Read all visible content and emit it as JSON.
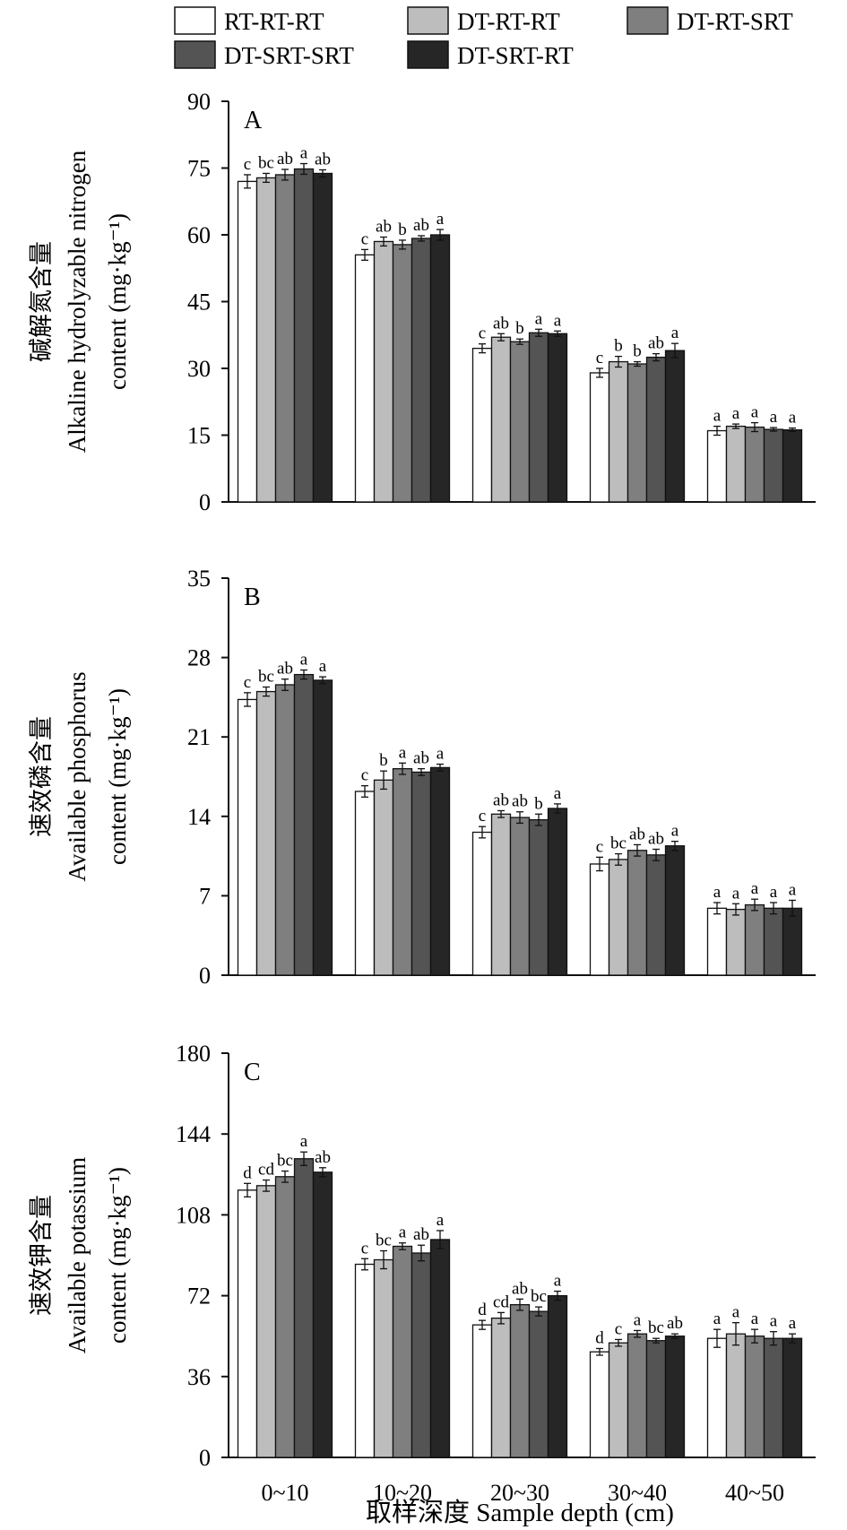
{
  "legend": [
    {
      "name": "RT-RT-RT",
      "color": "#ffffff"
    },
    {
      "name": "DT-RT-RT",
      "color": "#bdbdbd"
    },
    {
      "name": "DT-RT-SRT",
      "color": "#7f7f7f"
    },
    {
      "name": "DT-SRT-SRT",
      "color": "#545454"
    },
    {
      "name": "DT-SRT-RT",
      "color": "#262626"
    }
  ],
  "xlabel": "取样深度 Sample depth (cm)",
  "chart_data": [
    {
      "type": "bar",
      "panel": "A",
      "ylabel_cn": "碱解氮含量",
      "ylabel_en1": "Alkaline hydrolyzable nitrogen",
      "ylabel_en2": "content (mg·kg⁻¹)",
      "ylim": [
        0,
        90
      ],
      "yticks": [
        0,
        15,
        30,
        45,
        60,
        75,
        90
      ],
      "categories": [
        "0~10",
        "10~20",
        "20~30",
        "30~40",
        "40~50"
      ],
      "series": [
        {
          "name": "RT-RT-RT",
          "values": [
            72.0,
            55.5,
            34.5,
            29.0,
            16.0
          ],
          "errors": [
            1.5,
            1.2,
            1.0,
            1.0,
            1.0
          ],
          "letters": [
            "c",
            "c",
            "c",
            "c",
            "a"
          ]
        },
        {
          "name": "DT-RT-RT",
          "values": [
            72.8,
            58.5,
            37.0,
            31.5,
            17.0
          ],
          "errors": [
            1.0,
            1.0,
            0.8,
            1.2,
            0.5
          ],
          "letters": [
            "bc",
            "ab",
            "ab",
            "b",
            "a"
          ]
        },
        {
          "name": "DT-RT-SRT",
          "values": [
            73.5,
            57.8,
            36.0,
            31.0,
            16.8
          ],
          "errors": [
            1.2,
            1.0,
            0.6,
            0.5,
            1.0
          ],
          "letters": [
            "ab",
            "b",
            "b",
            "b",
            "a"
          ]
        },
        {
          "name": "DT-SRT-SRT",
          "values": [
            74.8,
            59.2,
            38.0,
            32.5,
            16.3
          ],
          "errors": [
            1.2,
            0.6,
            0.8,
            0.8,
            0.4
          ],
          "letters": [
            "a",
            "ab",
            "a",
            "ab",
            "a"
          ]
        },
        {
          "name": "DT-SRT-RT",
          "values": [
            73.8,
            60.0,
            37.8,
            34.0,
            16.2
          ],
          "errors": [
            0.8,
            1.2,
            0.6,
            1.6,
            0.4
          ],
          "letters": [
            "ab",
            "a",
            "a",
            "a",
            "a"
          ]
        }
      ]
    },
    {
      "type": "bar",
      "panel": "B",
      "ylabel_cn": "速效磷含量",
      "ylabel_en1": "Available phosphorus",
      "ylabel_en2": "content (mg·kg⁻¹)",
      "ylim": [
        0,
        35
      ],
      "yticks": [
        0,
        7,
        14,
        21,
        28,
        35
      ],
      "categories": [
        "0~10",
        "10~20",
        "20~30",
        "30~40",
        "40~50"
      ],
      "series": [
        {
          "name": "RT-RT-RT",
          "values": [
            24.3,
            16.2,
            12.6,
            9.8,
            5.9
          ],
          "errors": [
            0.6,
            0.5,
            0.5,
            0.6,
            0.5
          ],
          "letters": [
            "c",
            "c",
            "c",
            "c",
            "a"
          ]
        },
        {
          "name": "DT-RT-RT",
          "values": [
            25.0,
            17.2,
            14.2,
            10.2,
            5.8
          ],
          "errors": [
            0.4,
            0.8,
            0.3,
            0.5,
            0.5
          ],
          "letters": [
            "bc",
            "b",
            "ab",
            "bc",
            "a"
          ]
        },
        {
          "name": "DT-RT-SRT",
          "values": [
            25.6,
            18.2,
            13.9,
            11.0,
            6.2
          ],
          "errors": [
            0.5,
            0.5,
            0.5,
            0.5,
            0.5
          ],
          "letters": [
            "ab",
            "a",
            "ab",
            "ab",
            "a"
          ]
        },
        {
          "name": "DT-SRT-SRT",
          "values": [
            26.5,
            17.9,
            13.7,
            10.6,
            5.9
          ],
          "errors": [
            0.4,
            0.3,
            0.5,
            0.5,
            0.5
          ],
          "letters": [
            "a",
            "ab",
            "b",
            "ab",
            "a"
          ]
        },
        {
          "name": "DT-SRT-RT",
          "values": [
            26.0,
            18.3,
            14.7,
            11.4,
            5.9
          ],
          "errors": [
            0.3,
            0.3,
            0.4,
            0.4,
            0.7
          ],
          "letters": [
            "a",
            "a",
            "a",
            "a",
            "a"
          ]
        }
      ]
    },
    {
      "type": "bar",
      "panel": "C",
      "ylabel_cn": "速效钾含量",
      "ylabel_en1": "Available potassium",
      "ylabel_en2": "content (mg·kg⁻¹)",
      "ylim": [
        0,
        180
      ],
      "yticks": [
        0,
        36,
        72,
        108,
        144,
        180
      ],
      "categories": [
        "0~10",
        "10~20",
        "20~30",
        "30~40",
        "40~50"
      ],
      "series": [
        {
          "name": "RT-RT-RT",
          "values": [
            119,
            86,
            59,
            47,
            53
          ],
          "errors": [
            3,
            2.5,
            2,
            1.5,
            4
          ],
          "letters": [
            "d",
            "c",
            "d",
            "d",
            "a"
          ]
        },
        {
          "name": "DT-RT-RT",
          "values": [
            121,
            88,
            62,
            51,
            55
          ],
          "errors": [
            2.5,
            4,
            2.5,
            1.5,
            5
          ],
          "letters": [
            "cd",
            "bc",
            "cd",
            "c",
            "a"
          ]
        },
        {
          "name": "DT-RT-SRT",
          "values": [
            125,
            94,
            68,
            55,
            54
          ],
          "errors": [
            2.5,
            1.5,
            2.5,
            1.5,
            3
          ],
          "letters": [
            "bc",
            "a",
            "ab",
            "a",
            "a"
          ]
        },
        {
          "name": "DT-SRT-SRT",
          "values": [
            133,
            91,
            65,
            52,
            53
          ],
          "errors": [
            3,
            3.5,
            2,
            1,
            3
          ],
          "letters": [
            "a",
            "ab",
            "bc",
            "bc",
            "a"
          ]
        },
        {
          "name": "DT-SRT-RT",
          "values": [
            127,
            97,
            72,
            54,
            53
          ],
          "errors": [
            2,
            4,
            2,
            1,
            2
          ],
          "letters": [
            "ab",
            "a",
            "a",
            "ab",
            "a"
          ]
        }
      ]
    }
  ]
}
